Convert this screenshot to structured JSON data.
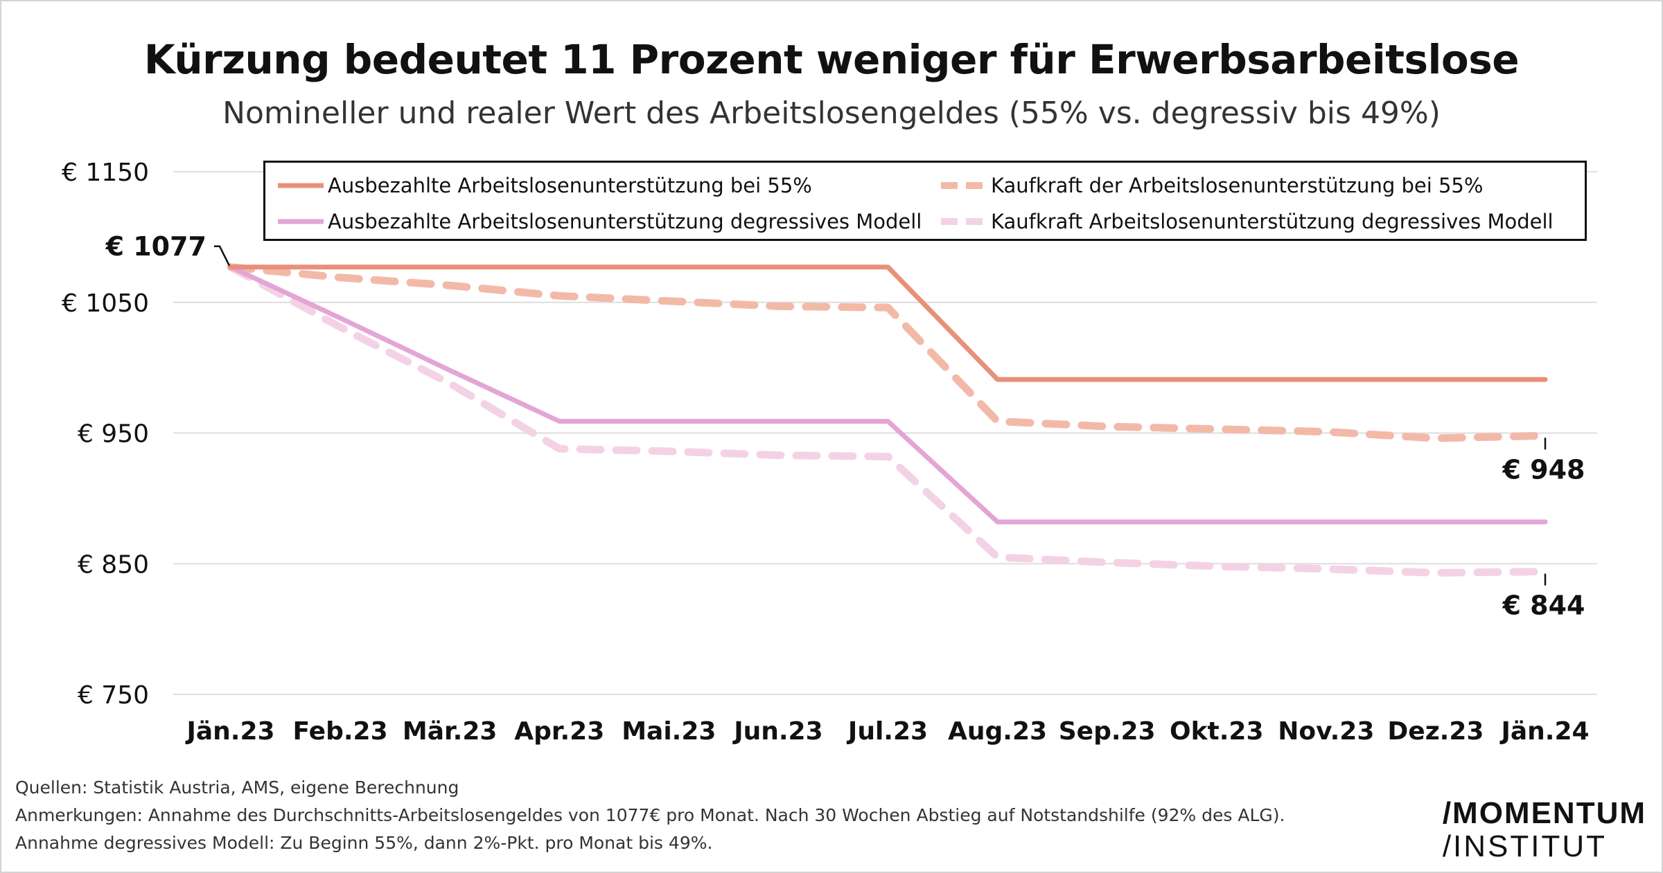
{
  "title": "Kürzung bedeutet 11 Prozent weniger für Erwerbsarbeitslose",
  "subtitle": "Nomineller und realer Wert des Arbeitslosengeldes (55% vs. degressiv bis 49%)",
  "chart_data": {
    "type": "line",
    "categories": [
      "Jän.23",
      "Feb.23",
      "Mär.23",
      "Apr.23",
      "Mai.23",
      "Jun.23",
      "Jul.23",
      "Aug.23",
      "Sep.23",
      "Okt.23",
      "Nov.23",
      "Dez.23",
      "Jän.24"
    ],
    "ylim": [
      750,
      1150
    ],
    "yticks": [
      750,
      850,
      950,
      1050,
      1150
    ],
    "ytick_labels": [
      "€ 750",
      "€ 850",
      "€ 950",
      "€ 1050",
      "€ 1150"
    ],
    "grid": true,
    "legend_position": "top",
    "series": [
      {
        "name": "Ausbezahlte Arbeitslosenunterstützung bei 55%",
        "color": "#e8907a",
        "dash": false,
        "values": [
          1077,
          1077,
          1077,
          1077,
          1077,
          1077,
          1077,
          991,
          991,
          991,
          991,
          991,
          991
        ]
      },
      {
        "name": "Kaufkraft der Arbeitslosenunterstützung bei 55%",
        "color": "#f3b9a8",
        "dash": true,
        "values": [
          1077,
          1069,
          1063,
          1055,
          1051,
          1047,
          1046,
          959,
          955,
          953,
          951,
          946,
          948
        ]
      },
      {
        "name": "Ausbezahlte Arbeitslosenunterstützung degressives Modell",
        "color": "#e3a5d6",
        "dash": false,
        "values": [
          1077,
          1038,
          998,
          959,
          959,
          959,
          959,
          882,
          882,
          882,
          882,
          882,
          882
        ]
      },
      {
        "name": "Kaufkraft Arbeitslosenunterstützung degressives Modell",
        "color": "#f4d2e6",
        "dash": true,
        "values": [
          1077,
          1031,
          988,
          938,
          936,
          933,
          932,
          855,
          851,
          848,
          846,
          843,
          844
        ]
      }
    ],
    "annotations": [
      {
        "text": "€ 1077",
        "x": "Jän.23",
        "y": 1077
      },
      {
        "text": "€ 948",
        "x": "Jän.24",
        "y": 948
      },
      {
        "text": "€ 844",
        "x": "Jän.24",
        "y": 844
      }
    ]
  },
  "footer": {
    "line1": "Quellen: Statistik Austria, AMS, eigene Berechnung",
    "line2": "Anmerkungen: Annahme des Durchschnitts-Arbeitslosengeldes von 1077€ pro Monat. Nach 30 Wochen Abstieg auf Notstandshilfe (92% des ALG).",
    "line3": "Annahme degressives Modell: Zu Beginn 55%, dann 2%-Pkt. pro Monat bis 49%."
  },
  "logo": {
    "line1": "/MOMENTUM",
    "line2": "/INSTITUT"
  }
}
